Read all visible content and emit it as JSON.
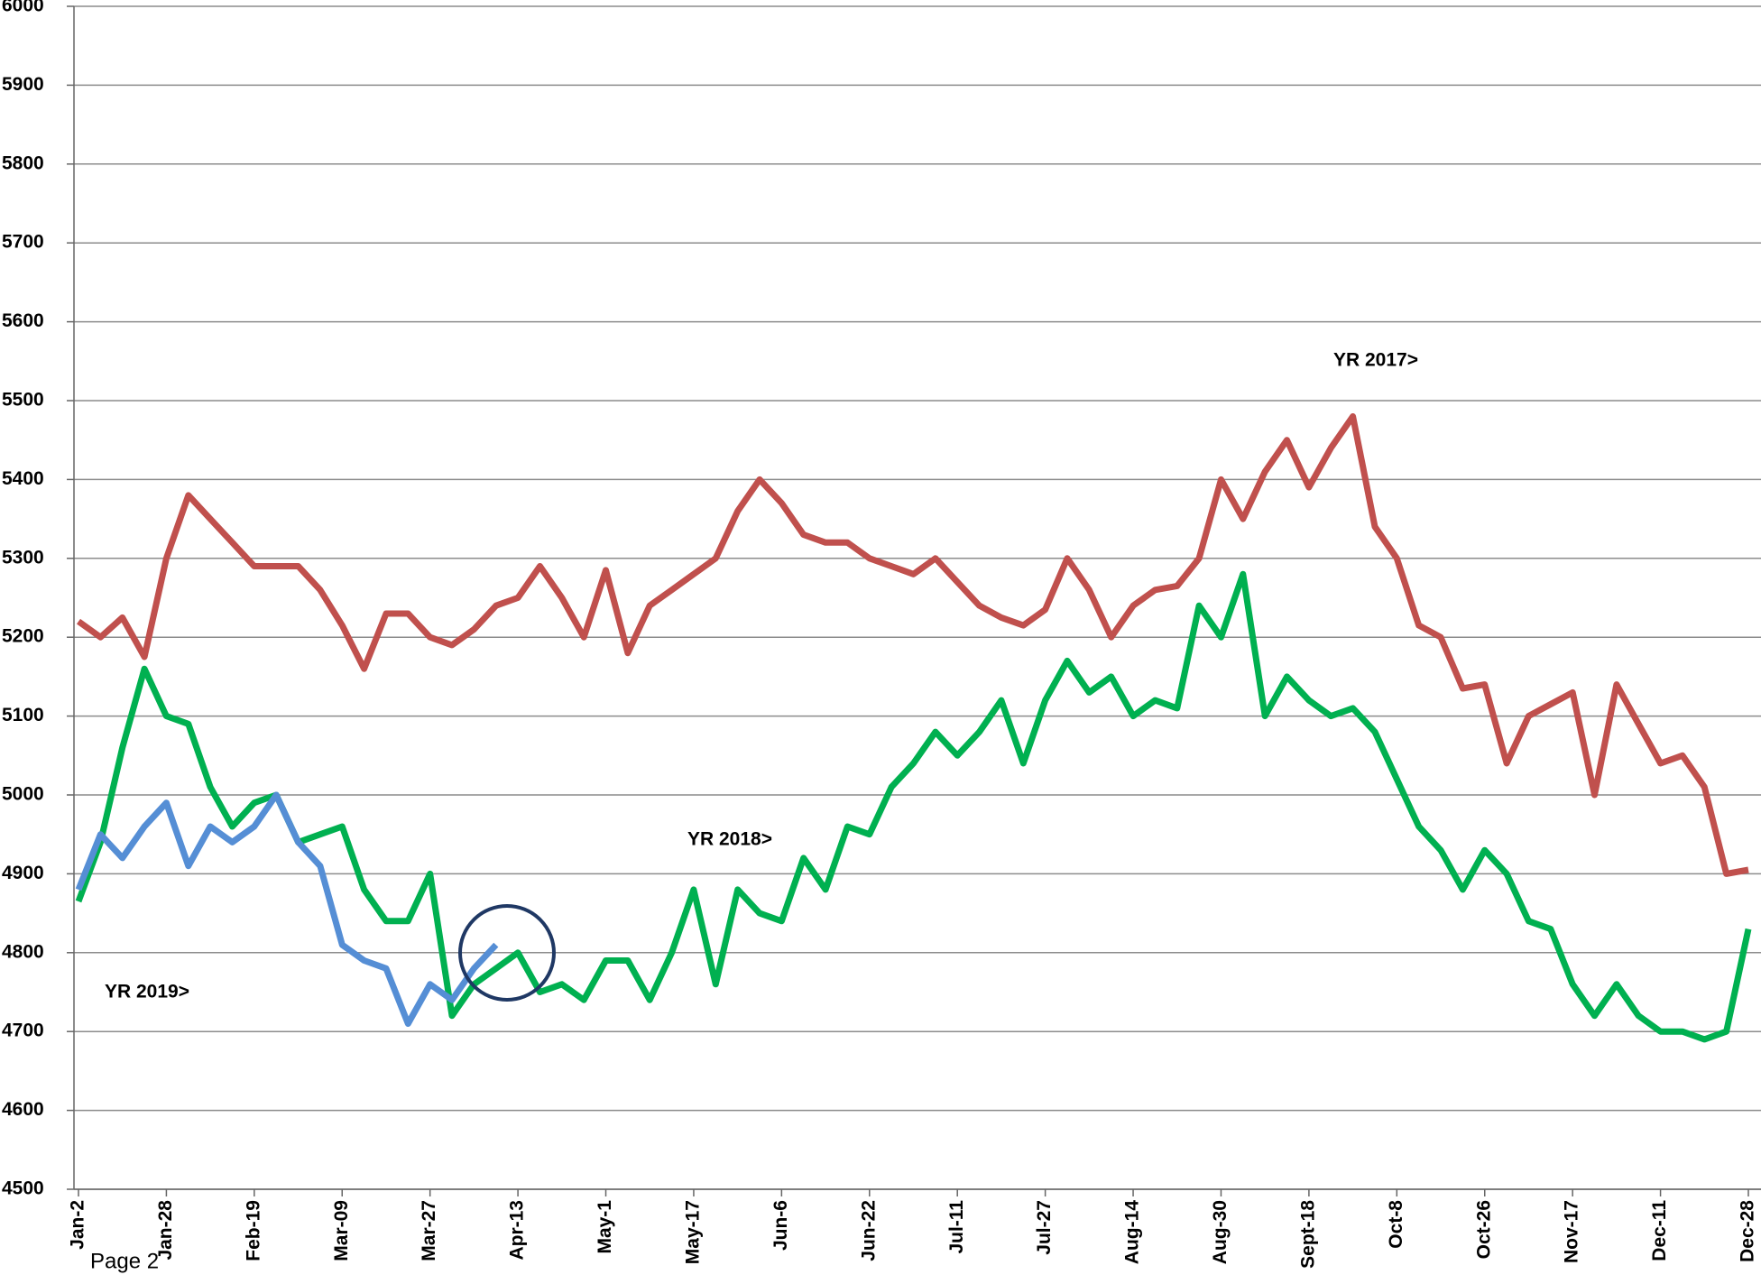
{
  "chart_data": {
    "type": "line",
    "categories": [
      "Jan-2",
      null,
      null,
      null,
      "Jan-28",
      null,
      null,
      null,
      "Feb-19",
      null,
      null,
      null,
      "Mar-09",
      null,
      null,
      null,
      "Mar-27",
      null,
      null,
      null,
      "Apr-13",
      null,
      null,
      null,
      "May-1",
      null,
      null,
      null,
      "May-17",
      null,
      null,
      null,
      "Jun-6",
      null,
      null,
      null,
      "Jun-22",
      null,
      null,
      null,
      "Jul-11",
      null,
      null,
      null,
      "Jul-27",
      null,
      null,
      null,
      "Aug-14",
      null,
      null,
      null,
      "Aug-30",
      null,
      null,
      null,
      "Sept-18",
      null,
      null,
      null,
      "Oct-8",
      null,
      null,
      null,
      "Oct-26",
      null,
      null,
      null,
      "Nov-17",
      null,
      null,
      null,
      "Dec-11",
      null,
      null,
      null,
      "Dec-28"
    ],
    "series": [
      {
        "name": "YR 2017>",
        "color": "#c0504d",
        "values": [
          5220,
          5200,
          5225,
          5175,
          5300,
          5380,
          5350,
          5320,
          5290,
          5290,
          5290,
          5260,
          5215,
          5160,
          5230,
          5230,
          5200,
          5190,
          5210,
          5240,
          5250,
          5290,
          5250,
          5200,
          5285,
          5180,
          5240,
          5260,
          5280,
          5300,
          5360,
          5400,
          5370,
          5330,
          5320,
          5320,
          5300,
          5290,
          5280,
          5300,
          5270,
          5240,
          5225,
          5215,
          5235,
          5300,
          5260,
          5200,
          5240,
          5260,
          5265,
          5300,
          5400,
          5350,
          5410,
          5450,
          5390,
          5440,
          5480,
          5340,
          5300,
          5215,
          5200,
          5135,
          5140,
          5040,
          5100,
          5115,
          5130,
          5000,
          5140,
          5090,
          5040,
          5050,
          5010,
          4900,
          4905
        ]
      },
      {
        "name": "YR 2018>",
        "color": "#00b050",
        "values": [
          4865,
          4940,
          5060,
          5160,
          5100,
          5090,
          5010,
          4960,
          4990,
          5000,
          4940,
          4950,
          4960,
          4880,
          4840,
          4840,
          4900,
          4720,
          4760,
          4780,
          4800,
          4750,
          4760,
          4740,
          4790,
          4790,
          4740,
          4800,
          4880,
          4760,
          4880,
          4850,
          4840,
          4920,
          4880,
          4960,
          4950,
          5010,
          5040,
          5080,
          5050,
          5080,
          5120,
          5040,
          5120,
          5170,
          5130,
          5150,
          5100,
          5120,
          5110,
          5240,
          5200,
          5280,
          5100,
          5150,
          5120,
          5100,
          5110,
          5080,
          5020,
          4960,
          4930,
          4880,
          4930,
          4900,
          4840,
          4830,
          4760,
          4720,
          4760,
          4720,
          4700,
          4700,
          4690,
          4700,
          4830
        ]
      },
      {
        "name": "YR 2019>",
        "color": "#558ed5",
        "values": [
          4880,
          4950,
          4920,
          4960,
          4990,
          4910,
          4960,
          4940,
          4960,
          5000,
          4940,
          4910,
          4810,
          4790,
          4780,
          4710,
          4760,
          4740,
          4780,
          4810,
          null,
          null,
          null,
          null,
          null,
          null,
          null,
          null,
          null,
          null,
          null,
          null,
          null,
          null,
          null,
          null,
          null,
          null,
          null,
          null,
          null,
          null,
          null,
          null,
          null,
          null,
          null,
          null,
          null,
          null,
          null,
          null,
          null,
          null,
          null,
          null,
          null,
          null,
          null,
          null,
          null,
          null,
          null,
          null,
          null,
          null,
          null,
          null,
          null,
          null,
          null,
          null,
          null,
          null,
          null,
          null,
          null
        ]
      }
    ],
    "ylim": [
      4500,
      6000
    ],
    "yticks": [
      4500,
      4600,
      4700,
      4800,
      4900,
      5000,
      5100,
      5200,
      5300,
      5400,
      5500,
      5600,
      5700,
      5800,
      5900,
      6000
    ],
    "grid": true,
    "annotations": [
      "Page 2"
    ]
  }
}
